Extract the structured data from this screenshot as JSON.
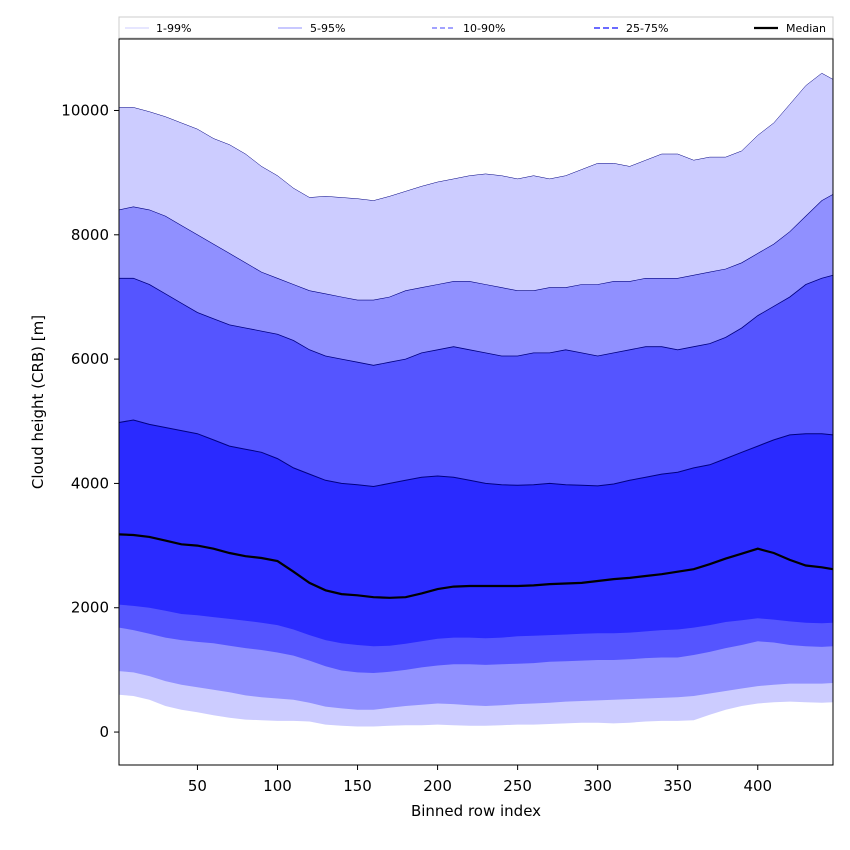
{
  "chart_data": {
    "type": "area",
    "xlabel": "Binned row index",
    "ylabel": "Cloud height (CRB) [m]",
    "xlim": [
      1,
      447
    ],
    "ylim": [
      -530,
      11150
    ],
    "xticks": [
      50,
      100,
      150,
      200,
      250,
      300,
      350,
      400
    ],
    "yticks": [
      0,
      2000,
      4000,
      6000,
      8000,
      10000
    ],
    "grid": false,
    "legend_position": "top",
    "x": [
      1,
      10,
      20,
      30,
      40,
      50,
      60,
      70,
      80,
      90,
      100,
      110,
      120,
      130,
      140,
      150,
      160,
      170,
      180,
      190,
      200,
      210,
      220,
      230,
      240,
      250,
      260,
      270,
      280,
      290,
      300,
      310,
      320,
      330,
      340,
      350,
      360,
      370,
      380,
      390,
      400,
      410,
      420,
      430,
      440,
      447
    ],
    "series": [
      {
        "name": "1-99%",
        "color": "#ccccff",
        "lower": [
          600,
          580,
          520,
          420,
          360,
          320,
          270,
          230,
          200,
          190,
          180,
          180,
          170,
          120,
          100,
          90,
          90,
          100,
          110,
          110,
          120,
          110,
          100,
          100,
          110,
          120,
          120,
          130,
          140,
          150,
          150,
          140,
          150,
          170,
          180,
          180,
          190,
          280,
          360,
          420,
          460,
          480,
          490,
          480,
          470,
          480
        ],
        "upper": [
          10050,
          10050,
          9980,
          9900,
          9800,
          9700,
          9550,
          9450,
          9300,
          9100,
          8950,
          8750,
          8600,
          8620,
          8600,
          8580,
          8550,
          8620,
          8700,
          8780,
          8850,
          8900,
          8950,
          8980,
          8950,
          8900,
          8950,
          8900,
          8950,
          9050,
          9150,
          9150,
          9100,
          9200,
          9300,
          9300,
          9200,
          9250,
          9250,
          9350,
          9600,
          9800,
          10100,
          10400,
          10600,
          10500
        ]
      },
      {
        "name": "5-95%",
        "color": "#9090ff",
        "lower": [
          980,
          960,
          900,
          820,
          760,
          720,
          680,
          640,
          590,
          560,
          540,
          520,
          470,
          410,
          380,
          360,
          360,
          390,
          420,
          440,
          460,
          450,
          430,
          420,
          430,
          450,
          460,
          470,
          490,
          500,
          510,
          520,
          530,
          540,
          550,
          560,
          580,
          620,
          660,
          700,
          740,
          760,
          780,
          780,
          780,
          790
        ],
        "upper": [
          8400,
          8450,
          8400,
          8300,
          8150,
          8000,
          7850,
          7700,
          7550,
          7400,
          7300,
          7200,
          7100,
          7050,
          7000,
          6950,
          6950,
          7000,
          7100,
          7150,
          7200,
          7250,
          7250,
          7200,
          7150,
          7100,
          7100,
          7150,
          7150,
          7200,
          7200,
          7250,
          7250,
          7300,
          7300,
          7300,
          7350,
          7400,
          7450,
          7550,
          7700,
          7850,
          8050,
          8300,
          8550,
          8650
        ]
      },
      {
        "name": "10-90%",
        "color": "#5555ff",
        "lower": [
          1680,
          1640,
          1580,
          1520,
          1480,
          1450,
          1430,
          1390,
          1350,
          1320,
          1280,
          1230,
          1150,
          1060,
          990,
          960,
          950,
          970,
          1000,
          1040,
          1070,
          1090,
          1090,
          1080,
          1090,
          1100,
          1110,
          1130,
          1140,
          1150,
          1160,
          1160,
          1170,
          1190,
          1200,
          1200,
          1240,
          1290,
          1350,
          1400,
          1460,
          1440,
          1400,
          1380,
          1370,
          1380
        ],
        "upper": [
          7300,
          7300,
          7200,
          7050,
          6900,
          6750,
          6650,
          6550,
          6500,
          6450,
          6400,
          6300,
          6150,
          6050,
          6000,
          5950,
          5900,
          5950,
          6000,
          6100,
          6150,
          6200,
          6150,
          6100,
          6050,
          6050,
          6100,
          6100,
          6150,
          6100,
          6050,
          6100,
          6150,
          6200,
          6200,
          6150,
          6200,
          6250,
          6350,
          6500,
          6700,
          6850,
          7000,
          7200,
          7300,
          7350
        ]
      },
      {
        "name": "25-75%",
        "color": "#2a2aff",
        "lower": [
          2050,
          2030,
          2000,
          1950,
          1900,
          1880,
          1850,
          1820,
          1790,
          1760,
          1720,
          1650,
          1560,
          1480,
          1430,
          1400,
          1380,
          1390,
          1420,
          1460,
          1500,
          1520,
          1520,
          1510,
          1520,
          1540,
          1550,
          1560,
          1570,
          1580,
          1590,
          1590,
          1600,
          1620,
          1640,
          1650,
          1680,
          1720,
          1770,
          1800,
          1830,
          1810,
          1780,
          1760,
          1750,
          1760
        ],
        "upper": [
          4980,
          5020,
          4950,
          4900,
          4850,
          4800,
          4700,
          4600,
          4550,
          4500,
          4400,
          4250,
          4150,
          4050,
          4000,
          3980,
          3950,
          4000,
          4050,
          4100,
          4120,
          4100,
          4050,
          4000,
          3980,
          3970,
          3980,
          4000,
          3980,
          3970,
          3960,
          3990,
          4050,
          4100,
          4150,
          4180,
          4250,
          4300,
          4400,
          4500,
          4600,
          4700,
          4780,
          4800,
          4800,
          4780
        ]
      },
      {
        "name": "Median",
        "color": "#000000",
        "values": [
          3180,
          3170,
          3140,
          3080,
          3020,
          3000,
          2950,
          2880,
          2830,
          2800,
          2750,
          2580,
          2400,
          2280,
          2220,
          2200,
          2170,
          2160,
          2170,
          2230,
          2300,
          2340,
          2350,
          2350,
          2350,
          2350,
          2360,
          2380,
          2390,
          2400,
          2430,
          2460,
          2480,
          2510,
          2540,
          2580,
          2620,
          2700,
          2790,
          2870,
          2950,
          2880,
          2770,
          2680,
          2650,
          2620
        ]
      }
    ],
    "legend": [
      "1-99%",
      "5-95%",
      "10-90%",
      "25-75%",
      "Median"
    ]
  }
}
